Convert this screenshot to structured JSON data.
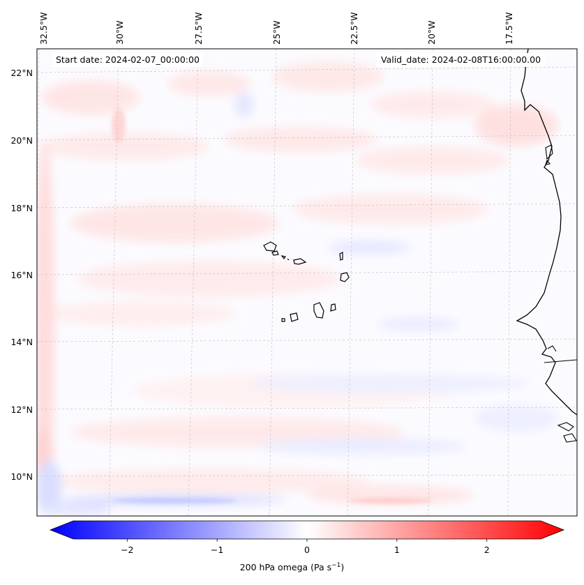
{
  "header": {
    "start_date": "Start date: 2024-02-07_00:00:00",
    "valid_date": "Valid_date: 2024-02-08T16:00:00.00"
  },
  "map": {
    "longitude_labels": [
      "32.5°W",
      "30°W",
      "27.5°W",
      "25°W",
      "22.5°W",
      "20°W",
      "17.5°W"
    ],
    "latitude_labels": [
      "22°N",
      "20°N",
      "18°N",
      "16°N",
      "14°N",
      "12°N",
      "10°N"
    ],
    "features": [
      "coastline",
      "cape-verde-islands",
      "gridlines",
      "omega-field"
    ]
  },
  "colorbar": {
    "title_prefix": "200 hPa omega (Pa s",
    "title_exp": "−1",
    "title_suffix": ")",
    "ticks": [
      "−2",
      "−1",
      "0",
      "1",
      "2"
    ],
    "tick_values": [
      -2,
      -1,
      0,
      1,
      2
    ],
    "range": [
      -2.6,
      2.6
    ],
    "colors": {
      "min": "#0000ff",
      "mid": "#ffffff",
      "max": "#ff0000"
    }
  },
  "chart_data": {
    "type": "heatmap",
    "title": "",
    "variable": "200 hPa omega",
    "units": "Pa s^-1",
    "extent": {
      "lon": [
        -33,
        -15.7
      ],
      "lat": [
        8.9,
        22.8
      ]
    },
    "vmin": -2.6,
    "vmax": 2.6,
    "features": [
      {
        "name": "weak positive omega (subsidence) patches",
        "value": 0.4
      },
      {
        "name": "weak negative omega bands",
        "value": -0.3
      },
      {
        "name": "southern negative band",
        "value": -0.6
      },
      {
        "name": "western edge positive band",
        "value": 0.7
      }
    ]
  }
}
